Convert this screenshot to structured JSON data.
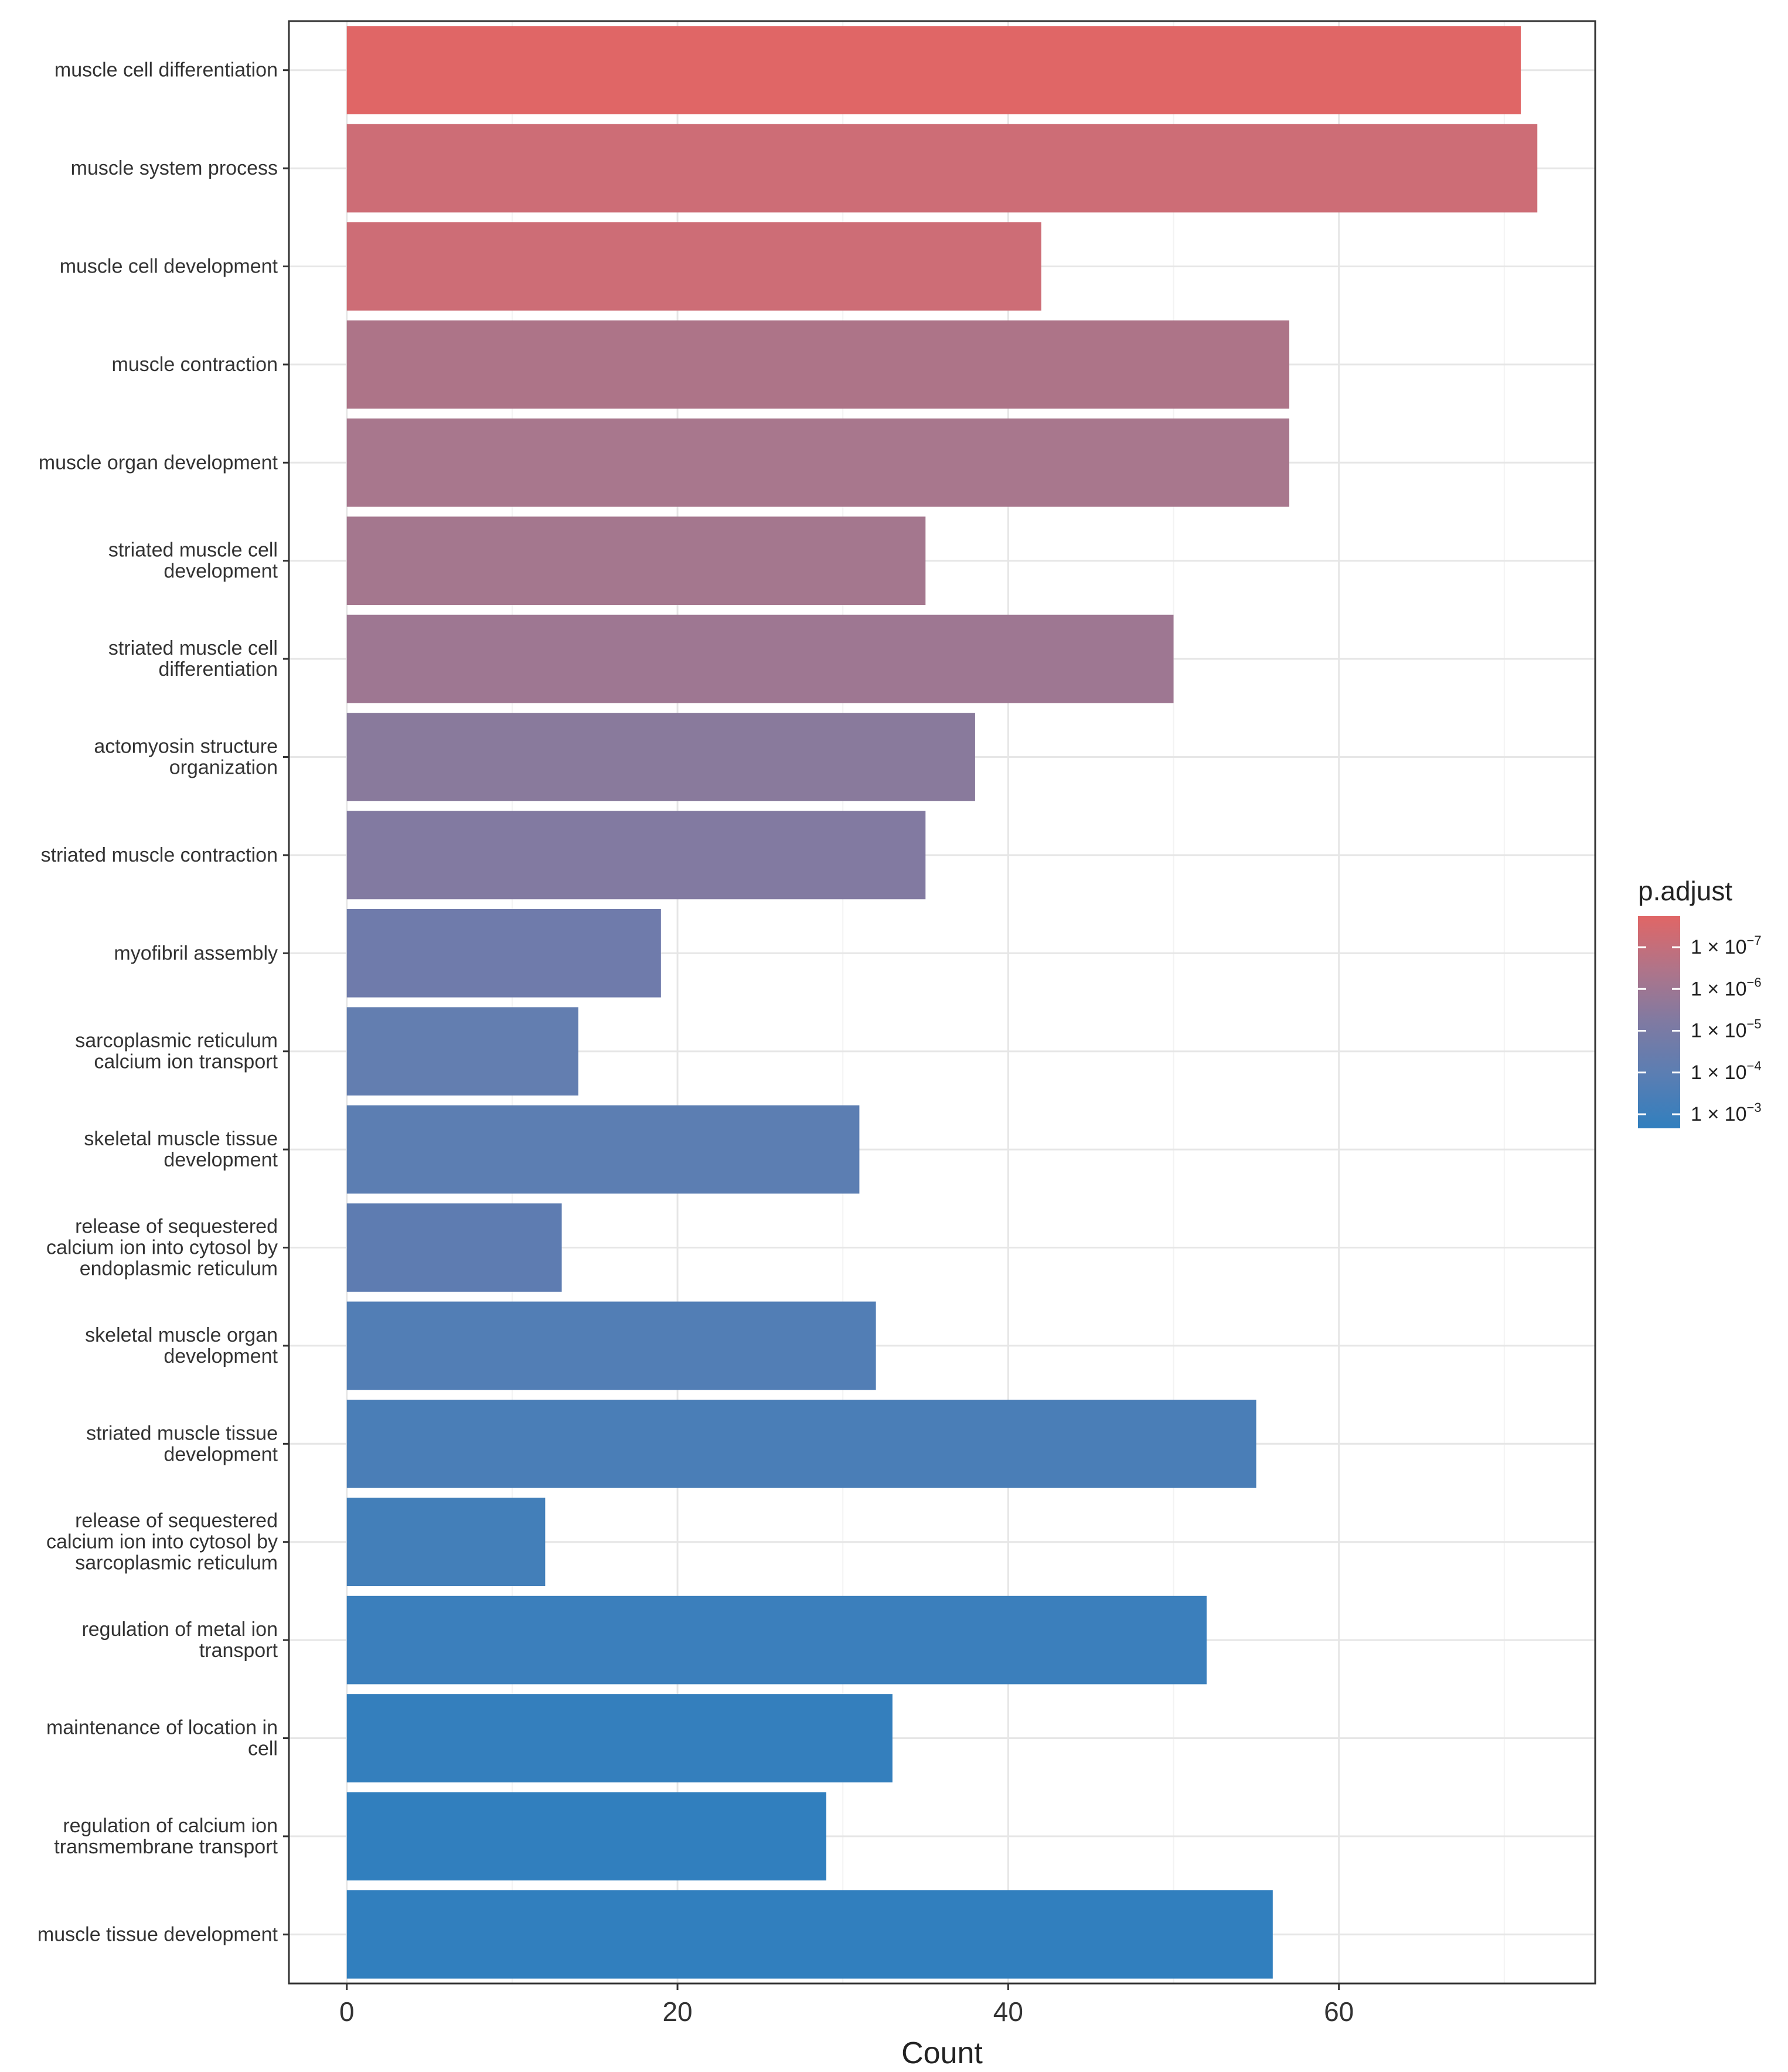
{
  "chart_data": {
    "type": "bar",
    "orientation": "horizontal",
    "title": "",
    "xlabel": "Count",
    "ylabel": "",
    "xlim": [
      -3.5,
      75.5
    ],
    "xticks": [
      0,
      20,
      40,
      60
    ],
    "xtick_labels": [
      "0",
      "20",
      "40",
      "60"
    ],
    "grid": true,
    "categories": [
      "muscle cell differentiation",
      "muscle system process",
      "muscle cell development",
      "muscle contraction",
      "muscle organ development",
      "striated muscle cell development",
      "striated muscle cell differentiation",
      "actomyosin structure organization",
      "striated muscle contraction",
      "myofibril assembly",
      "sarcoplasmic reticulum calcium ion transport",
      "skeletal muscle tissue development",
      "release of sequestered calcium ion into cytosol by endoplasmic reticulum",
      "skeletal muscle organ development",
      "striated muscle tissue development",
      "release of sequestered calcium ion into cytosol by sarcoplasmic reticulum",
      "regulation of metal ion transport",
      "maintenance of location in cell",
      "regulation of calcium ion transmembrane transport",
      "muscle tissue development"
    ],
    "category_lines": [
      [
        "muscle cell differentiation"
      ],
      [
        "muscle system process"
      ],
      [
        "muscle cell development"
      ],
      [
        "muscle contraction"
      ],
      [
        "muscle organ development"
      ],
      [
        "striated muscle cell",
        "development"
      ],
      [
        "striated muscle cell",
        "differentiation"
      ],
      [
        "actomyosin structure",
        "organization"
      ],
      [
        "striated muscle contraction"
      ],
      [
        "myofibril assembly"
      ],
      [
        "sarcoplasmic reticulum",
        "calcium ion transport"
      ],
      [
        "skeletal muscle tissue",
        "development"
      ],
      [
        "release of sequestered",
        "calcium ion into cytosol by",
        "endoplasmic reticulum"
      ],
      [
        "skeletal muscle organ",
        "development"
      ],
      [
        "striated muscle tissue",
        "development"
      ],
      [
        "release of sequestered",
        "calcium ion into cytosol by",
        "sarcoplasmic reticulum"
      ],
      [
        "regulation of metal ion",
        "transport"
      ],
      [
        "maintenance of location in",
        "cell"
      ],
      [
        "regulation of calcium ion",
        "transmembrane transport"
      ],
      [
        "muscle tissue development"
      ]
    ],
    "values": [
      71,
      72,
      42,
      57,
      57,
      35,
      50,
      38,
      35,
      19,
      14,
      31,
      13,
      32,
      55,
      12,
      52,
      33,
      29,
      56
    ],
    "bar_colors": [
      "#e06666",
      "#cd6d76",
      "#cd6d76",
      "#ad7488",
      "#a8778d",
      "#a4778e",
      "#9e7792",
      "#897a9c",
      "#827aa1",
      "#6f7bab",
      "#637eb0",
      "#5c7eb2",
      "#5e7cb1",
      "#527eb5",
      "#4a7eb7",
      "#437fb9",
      "#3b7fbc",
      "#347fbd",
      "#317fbe",
      "#317fbe"
    ],
    "legend": {
      "title": "p.adjust",
      "position": "right",
      "gradient_colors": [
        "#e06666",
        "#b07489",
        "#7f7aa2",
        "#5a7eb3",
        "#317fbe"
      ],
      "labels": [
        {
          "base": "1 × 10",
          "exp": "−7"
        },
        {
          "base": "1 × 10",
          "exp": "−6"
        },
        {
          "base": "1 × 10",
          "exp": "−5"
        },
        {
          "base": "1 × 10",
          "exp": "−4"
        },
        {
          "base": "1 × 10",
          "exp": "−3"
        }
      ]
    }
  }
}
